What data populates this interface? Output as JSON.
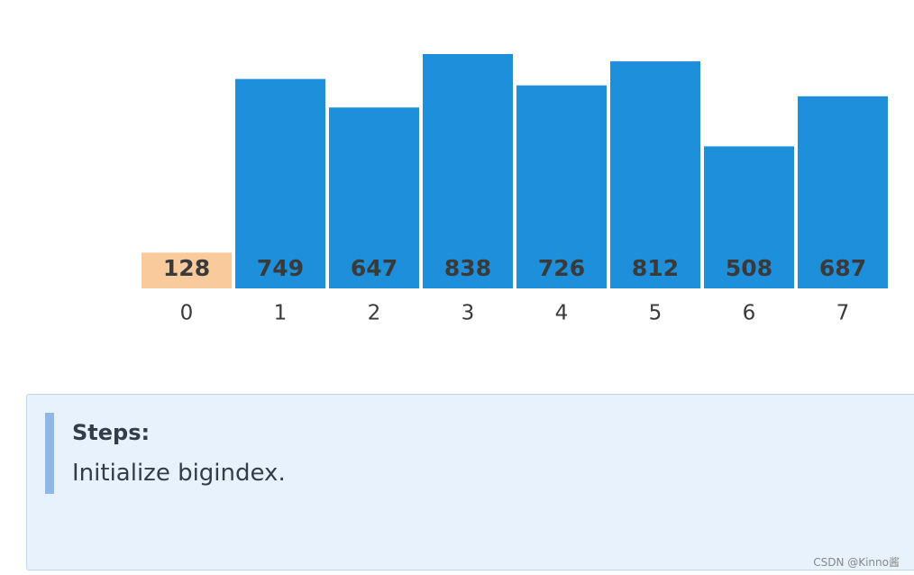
{
  "chart_data": {
    "type": "bar",
    "categories": [
      "0",
      "1",
      "2",
      "3",
      "4",
      "5",
      "6",
      "7"
    ],
    "values": [
      128,
      749,
      647,
      838,
      726,
      812,
      508,
      687
    ],
    "colors": [
      "#f9cb9c",
      "#1e90db",
      "#1e90db",
      "#1e90db",
      "#1e90db",
      "#1e90db",
      "#1e90db",
      "#1e90db"
    ],
    "ylim": [
      0,
      838
    ]
  },
  "steps": {
    "title": "Steps:",
    "text": "Initialize bigindex."
  },
  "watermark": "CSDN @Kinno酱"
}
